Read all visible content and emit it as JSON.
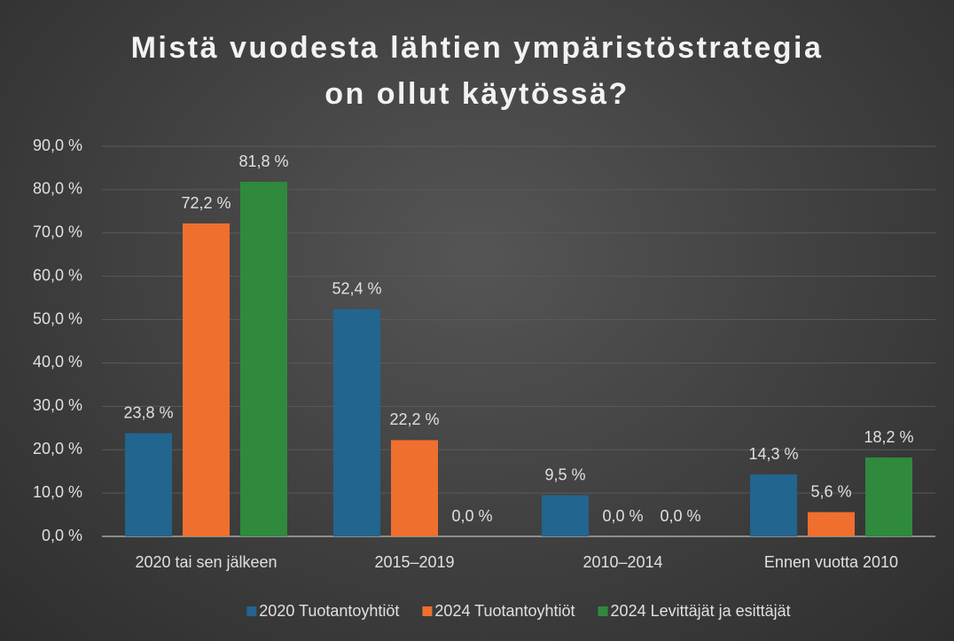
{
  "chart_data": {
    "type": "bar",
    "title": "Mistä vuodesta lähtien ympäristöstrategia on ollut käytössä?",
    "categories": [
      "2020 tai sen jälkeen",
      "2015–2019",
      "2010–2014",
      "Ennen vuotta 2010"
    ],
    "series": [
      {
        "name": "2020 Tuotantoyhtiöt",
        "color": "#22658f",
        "values": [
          23.8,
          52.4,
          9.5,
          14.3
        ],
        "value_labels": [
          "23,8 %",
          "52,4 %",
          "9,5 %",
          "14,3 %"
        ]
      },
      {
        "name": "2024 Tuotantoyhtiöt",
        "color": "#ef6f2e",
        "values": [
          72.2,
          22.2,
          0.0,
          5.6
        ],
        "value_labels": [
          "72,2 %",
          "22,2 %",
          "0,0 %",
          "5,6 %"
        ]
      },
      {
        "name": "2024 Levittäjät ja esittäjät",
        "color": "#2f8a3d",
        "values": [
          81.8,
          0.0,
          0.0,
          18.2
        ],
        "value_labels": [
          "81,8 %",
          "0,0 %",
          "0,0 %",
          "18,2 %"
        ]
      }
    ],
    "ylim": [
      0,
      90
    ],
    "yticks": [
      {
        "value": 0,
        "label": "0,0 %"
      },
      {
        "value": 10,
        "label": "10,0 %"
      },
      {
        "value": 20,
        "label": "20,0 %"
      },
      {
        "value": 30,
        "label": "30,0 %"
      },
      {
        "value": 40,
        "label": "40,0 %"
      },
      {
        "value": 50,
        "label": "50,0 %"
      },
      {
        "value": 60,
        "label": "60,0 %"
      },
      {
        "value": 70,
        "label": "70,0 %"
      },
      {
        "value": 80,
        "label": "80,0 %"
      },
      {
        "value": 90,
        "label": "90,0 %"
      }
    ],
    "grid": true,
    "legend": "bottom"
  }
}
